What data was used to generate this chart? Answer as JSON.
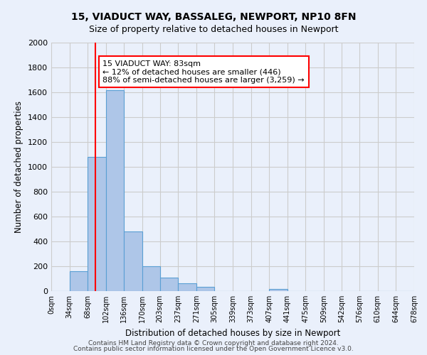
{
  "title1": "15, VIADUCT WAY, BASSALEG, NEWPORT, NP10 8FN",
  "title2": "Size of property relative to detached houses in Newport",
  "xlabel": "Distribution of detached houses by size in Newport",
  "ylabel": "Number of detached properties",
  "bar_edges": [
    0,
    34,
    68,
    102,
    136,
    170,
    203,
    237,
    271,
    305,
    339,
    373,
    407,
    441,
    475,
    509,
    542,
    576,
    610,
    644,
    678
  ],
  "bar_heights": [
    0,
    160,
    1080,
    1620,
    480,
    200,
    110,
    65,
    35,
    0,
    0,
    0,
    20,
    0,
    0,
    0,
    0,
    0,
    0,
    0
  ],
  "bar_color": "#aec6e8",
  "bar_edgecolor": "#5a9fd4",
  "grid_color": "#cccccc",
  "bg_color": "#eaf0fb",
  "red_line_x": 83,
  "ylim": [
    0,
    2000
  ],
  "yticks": [
    0,
    200,
    400,
    600,
    800,
    1000,
    1200,
    1400,
    1600,
    1800,
    2000
  ],
  "annotation_text": "15 VIADUCT WAY: 83sqm\n← 12% of detached houses are smaller (446)\n88% of semi-detached houses are larger (3,259) →",
  "annotation_box_color": "white",
  "annotation_box_edgecolor": "red",
  "footer1": "Contains HM Land Registry data © Crown copyright and database right 2024.",
  "footer2": "Contains public sector information licensed under the Open Government Licence v3.0.",
  "tick_labels": [
    "0sqm",
    "34sqm",
    "68sqm",
    "102sqm",
    "136sqm",
    "170sqm",
    "203sqm",
    "237sqm",
    "271sqm",
    "305sqm",
    "339sqm",
    "373sqm",
    "407sqm",
    "441sqm",
    "475sqm",
    "509sqm",
    "542sqm",
    "576sqm",
    "610sqm",
    "644sqm",
    "678sqm"
  ]
}
